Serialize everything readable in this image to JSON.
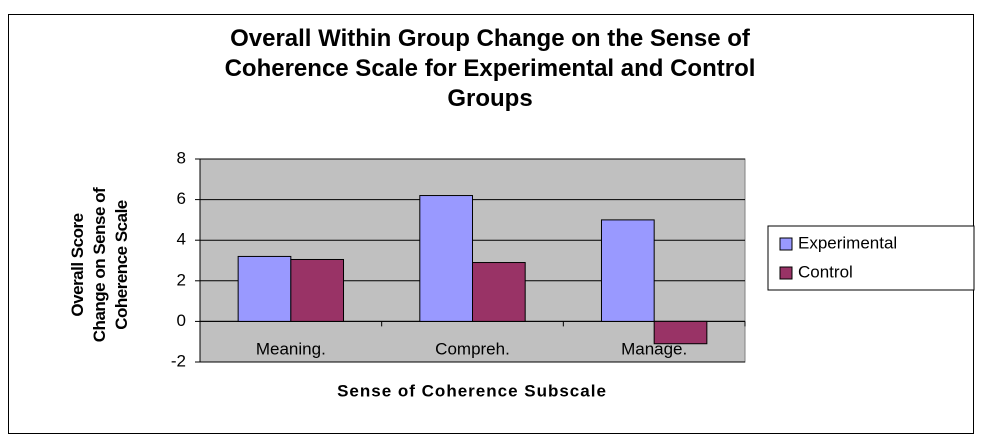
{
  "chart_data": {
    "type": "bar",
    "title": "Overall Within Group Change on the Sense of Coherence Scale for Experimental and Control Groups",
    "x_label": "Sense of Coherence Subscale",
    "y_label": "Overall Score Change on Sense of Coherence Scale",
    "categories": [
      "Meaning.",
      "Compreh.",
      "Manage."
    ],
    "series": [
      {
        "name": "Experimental",
        "color": "#9999ff",
        "values": [
          3.2,
          6.2,
          5.0
        ]
      },
      {
        "name": "Control",
        "color": "#993366",
        "values": [
          3.05,
          2.9,
          -1.1
        ]
      }
    ],
    "ylim": [
      -2,
      8
    ],
    "yticks": [
      -2,
      0,
      2,
      4,
      6,
      8
    ],
    "grid": true,
    "legend": "right"
  }
}
